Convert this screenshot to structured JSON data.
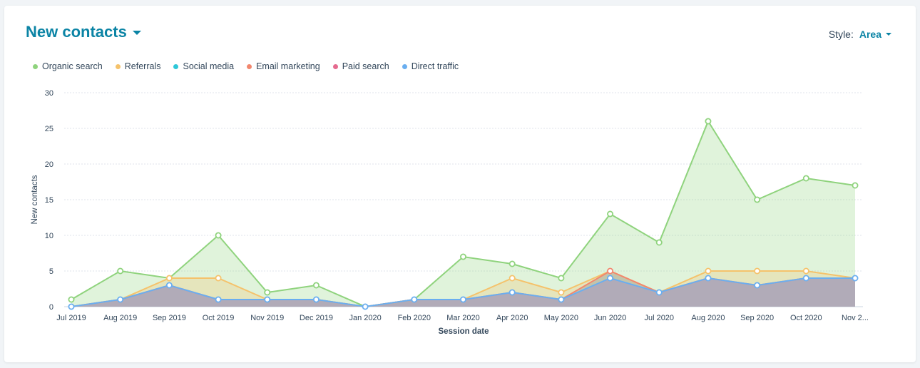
{
  "header": {
    "title": "New contacts"
  },
  "style_control": {
    "label": "Style:",
    "value": "Area"
  },
  "colors": {
    "organic": "#8fd37d",
    "referrals": "#f5c26b",
    "social": "#2ec7d8",
    "email": "#f2876e",
    "paid": "#e56b8f",
    "direct": "#6aaef0"
  },
  "chart_data": {
    "type": "area",
    "stacked": true,
    "xlabel": "Session date",
    "ylabel": "New contacts",
    "ylim": [
      0,
      30
    ],
    "yticks": [
      0,
      5,
      10,
      15,
      20,
      25,
      30
    ],
    "grid": true,
    "legend_position": "top-left",
    "categories": [
      "Jul 2019",
      "Aug 2019",
      "Sep 2019",
      "Oct 2019",
      "Nov 2019",
      "Dec 2019",
      "Jan 2020",
      "Feb 2020",
      "Mar 2020",
      "Apr 2020",
      "May 2020",
      "Jun 2020",
      "Jul 2020",
      "Aug 2020",
      "Sep 2020",
      "Oct 2020",
      "Nov 2..."
    ],
    "series": [
      {
        "name": "Organic search",
        "color": "#8fd37d",
        "values": [
          1,
          4,
          0,
          6,
          1,
          2,
          0,
          0,
          6,
          2,
          2,
          8,
          7,
          21,
          10,
          13,
          13
        ]
      },
      {
        "name": "Referrals",
        "color": "#f5c26b",
        "values": [
          0,
          0,
          1,
          3,
          0,
          0,
          0,
          0,
          0,
          2,
          1,
          0,
          0,
          1,
          2,
          1,
          0
        ]
      },
      {
        "name": "Social media",
        "color": "#2ec7d8",
        "values": [
          0,
          0,
          0,
          0,
          0,
          0,
          0,
          0,
          0,
          0,
          0,
          0,
          0,
          0,
          0,
          0,
          0
        ]
      },
      {
        "name": "Email marketing",
        "color": "#f2876e",
        "values": [
          0,
          0,
          0,
          0,
          0,
          0,
          0,
          0,
          0,
          0,
          0,
          1,
          0,
          0,
          0,
          0,
          0
        ]
      },
      {
        "name": "Paid search",
        "color": "#e56b8f",
        "values": [
          0,
          0,
          0,
          0,
          0,
          0,
          0,
          0,
          0,
          0,
          0,
          0,
          0,
          0,
          0,
          0,
          0
        ]
      },
      {
        "name": "Direct traffic",
        "color": "#6aaef0",
        "values": [
          0,
          1,
          3,
          1,
          1,
          1,
          0,
          1,
          1,
          2,
          1,
          4,
          2,
          4,
          3,
          4,
          4
        ]
      }
    ]
  }
}
